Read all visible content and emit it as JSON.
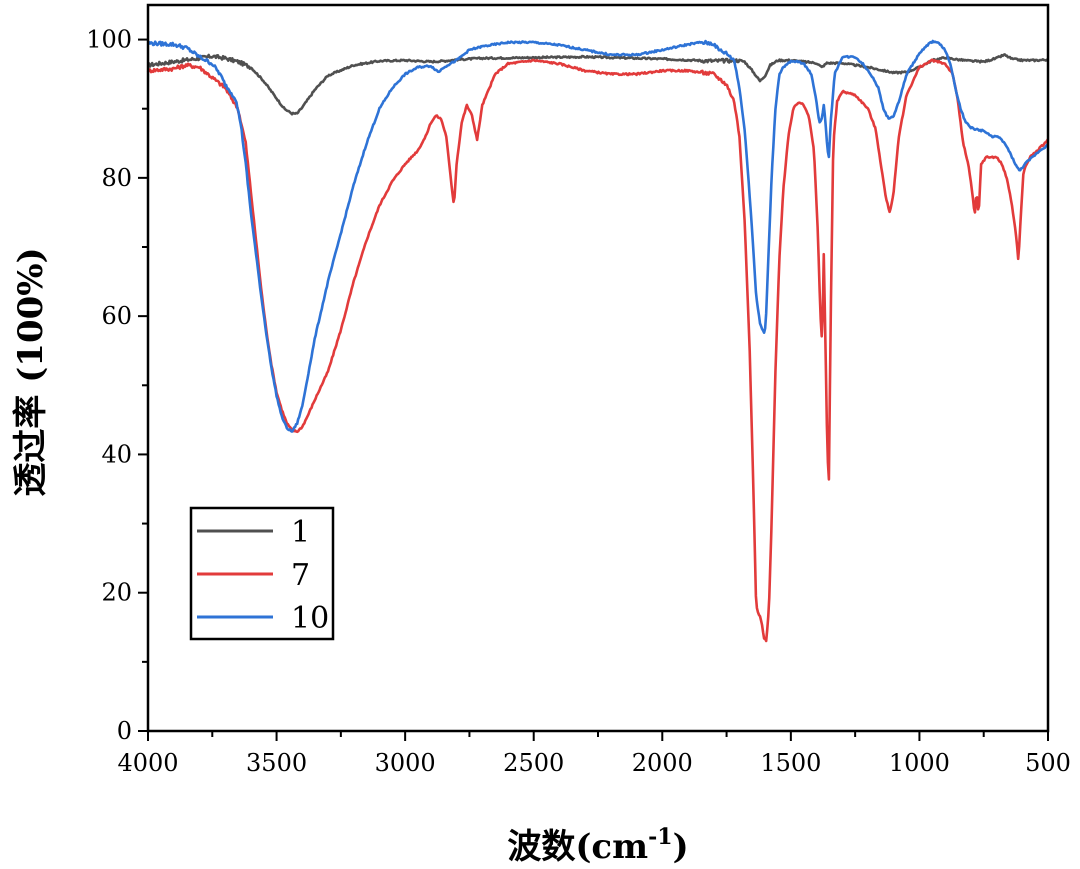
{
  "chart_data": {
    "type": "line",
    "title": "",
    "xlabel_main": "波数(cm",
    "xlabel_sup": "-1",
    "xlabel_close": ")",
    "ylabel": "透过率 (100%)",
    "xlim": [
      4000,
      500
    ],
    "ylim": [
      0,
      105
    ],
    "xticks": [
      4000,
      3500,
      3000,
      2500,
      2000,
      1500,
      1000,
      500
    ],
    "yticks": [
      0,
      20,
      40,
      60,
      80,
      100
    ],
    "legend_position": "lower-left",
    "series": [
      {
        "name": "1",
        "color": "#505050",
        "points": [
          [
            4000,
            96.3
          ],
          [
            3900,
            96.8
          ],
          [
            3800,
            97.3
          ],
          [
            3750,
            97.6
          ],
          [
            3700,
            97.3
          ],
          [
            3650,
            96.8
          ],
          [
            3600,
            96.0
          ],
          [
            3550,
            94.0
          ],
          [
            3500,
            91.5
          ],
          [
            3470,
            90.0
          ],
          [
            3440,
            89.3
          ],
          [
            3420,
            89.3
          ],
          [
            3400,
            90.2
          ],
          [
            3350,
            92.8
          ],
          [
            3300,
            94.8
          ],
          [
            3200,
            96.3
          ],
          [
            3100,
            96.9
          ],
          [
            3000,
            97.0
          ],
          [
            2900,
            96.8
          ],
          [
            2850,
            96.9
          ],
          [
            2800,
            97.1
          ],
          [
            2700,
            97.3
          ],
          [
            2500,
            97.4
          ],
          [
            2300,
            97.5
          ],
          [
            2000,
            97.2
          ],
          [
            1800,
            96.9
          ],
          [
            1700,
            97.0
          ],
          [
            1680,
            96.8
          ],
          [
            1650,
            95.5
          ],
          [
            1620,
            94.0
          ],
          [
            1600,
            94.8
          ],
          [
            1580,
            96.3
          ],
          [
            1550,
            97.0
          ],
          [
            1500,
            97.0
          ],
          [
            1450,
            96.8
          ],
          [
            1400,
            96.6
          ],
          [
            1380,
            96.0
          ],
          [
            1360,
            96.6
          ],
          [
            1300,
            96.6
          ],
          [
            1200,
            96.0
          ],
          [
            1100,
            95.2
          ],
          [
            1050,
            95.3
          ],
          [
            1000,
            96.0
          ],
          [
            950,
            97.0
          ],
          [
            900,
            97.4
          ],
          [
            850,
            97.1
          ],
          [
            800,
            96.9
          ],
          [
            750,
            96.8
          ],
          [
            700,
            97.3
          ],
          [
            670,
            97.8
          ],
          [
            640,
            97.2
          ],
          [
            600,
            97.0
          ],
          [
            550,
            97.0
          ],
          [
            500,
            97.1
          ]
        ]
      },
      {
        "name": "7",
        "color": "#e23b3b",
        "points": [
          [
            4000,
            95.5
          ],
          [
            3900,
            95.8
          ],
          [
            3850,
            96.3
          ],
          [
            3800,
            96.0
          ],
          [
            3750,
            94.5
          ],
          [
            3700,
            93.0
          ],
          [
            3650,
            90.0
          ],
          [
            3620,
            85.0
          ],
          [
            3600,
            78.0
          ],
          [
            3580,
            71.0
          ],
          [
            3560,
            64.0
          ],
          [
            3540,
            58.0
          ],
          [
            3520,
            53.0
          ],
          [
            3500,
            49.0
          ],
          [
            3480,
            46.5
          ],
          [
            3460,
            44.5
          ],
          [
            3440,
            43.5
          ],
          [
            3420,
            43.3
          ],
          [
            3400,
            44.0
          ],
          [
            3380,
            45.5
          ],
          [
            3350,
            48.0
          ],
          [
            3300,
            52.0
          ],
          [
            3250,
            58.0
          ],
          [
            3200,
            65.0
          ],
          [
            3150,
            71.0
          ],
          [
            3100,
            76.0
          ],
          [
            3050,
            79.5
          ],
          [
            3000,
            82.0
          ],
          [
            2950,
            84.0
          ],
          [
            2920,
            86.0
          ],
          [
            2900,
            88.0
          ],
          [
            2880,
            89.0
          ],
          [
            2860,
            88.5
          ],
          [
            2840,
            86.0
          ],
          [
            2820,
            79.0
          ],
          [
            2810,
            76.0
          ],
          [
            2800,
            82.0
          ],
          [
            2780,
            88.0
          ],
          [
            2760,
            90.5
          ],
          [
            2740,
            89.0
          ],
          [
            2720,
            85.5
          ],
          [
            2700,
            90.5
          ],
          [
            2650,
            95.0
          ],
          [
            2600,
            96.5
          ],
          [
            2500,
            97.0
          ],
          [
            2400,
            96.5
          ],
          [
            2300,
            95.5
          ],
          [
            2200,
            95.0
          ],
          [
            2100,
            95.0
          ],
          [
            2000,
            95.5
          ],
          [
            1900,
            95.5
          ],
          [
            1800,
            95.0
          ],
          [
            1750,
            93.5
          ],
          [
            1720,
            91.0
          ],
          [
            1700,
            86.0
          ],
          [
            1680,
            74.0
          ],
          [
            1660,
            55.0
          ],
          [
            1645,
            34.0
          ],
          [
            1635,
            18.0
          ],
          [
            1625,
            17.0
          ],
          [
            1615,
            16.0
          ],
          [
            1605,
            13.5
          ],
          [
            1595,
            13.0
          ],
          [
            1585,
            18.0
          ],
          [
            1575,
            30.0
          ],
          [
            1560,
            52.0
          ],
          [
            1545,
            68.0
          ],
          [
            1530,
            78.0
          ],
          [
            1510,
            86.0
          ],
          [
            1490,
            90.0
          ],
          [
            1470,
            91.0
          ],
          [
            1450,
            90.5
          ],
          [
            1430,
            89.0
          ],
          [
            1410,
            84.0
          ],
          [
            1395,
            72.0
          ],
          [
            1385,
            60.0
          ],
          [
            1378,
            56.0
          ],
          [
            1372,
            69.0
          ],
          [
            1365,
            55.0
          ],
          [
            1358,
            40.0
          ],
          [
            1352,
            36.5
          ],
          [
            1345,
            60.0
          ],
          [
            1335,
            85.0
          ],
          [
            1320,
            91.0
          ],
          [
            1300,
            92.5
          ],
          [
            1250,
            92.0
          ],
          [
            1200,
            90.0
          ],
          [
            1170,
            87.0
          ],
          [
            1150,
            82.0
          ],
          [
            1130,
            77.0
          ],
          [
            1115,
            75.0
          ],
          [
            1100,
            78.0
          ],
          [
            1080,
            86.0
          ],
          [
            1050,
            92.0
          ],
          [
            1000,
            96.0
          ],
          [
            950,
            97.0
          ],
          [
            900,
            96.5
          ],
          [
            870,
            95.0
          ],
          [
            850,
            91.0
          ],
          [
            830,
            85.0
          ],
          [
            810,
            82.0
          ],
          [
            795,
            78.0
          ],
          [
            785,
            74.5
          ],
          [
            778,
            78.0
          ],
          [
            770,
            74.5
          ],
          [
            760,
            82.0
          ],
          [
            740,
            83.0
          ],
          [
            700,
            83.0
          ],
          [
            680,
            82.0
          ],
          [
            660,
            80.0
          ],
          [
            640,
            76.0
          ],
          [
            625,
            72.0
          ],
          [
            615,
            68.0
          ],
          [
            605,
            75.0
          ],
          [
            595,
            81.0
          ],
          [
            570,
            83.0
          ],
          [
            540,
            84.0
          ],
          [
            500,
            85.5
          ]
        ]
      },
      {
        "name": "10",
        "color": "#2e73d6",
        "points": [
          [
            4000,
            99.5
          ],
          [
            3900,
            99.3
          ],
          [
            3850,
            98.8
          ],
          [
            3800,
            97.5
          ],
          [
            3750,
            96.5
          ],
          [
            3720,
            95.0
          ],
          [
            3700,
            93.5
          ],
          [
            3680,
            92.5
          ],
          [
            3660,
            91.5
          ],
          [
            3640,
            88.0
          ],
          [
            3620,
            82.0
          ],
          [
            3600,
            75.0
          ],
          [
            3580,
            69.0
          ],
          [
            3560,
            63.0
          ],
          [
            3540,
            57.5
          ],
          [
            3520,
            52.5
          ],
          [
            3500,
            48.5
          ],
          [
            3480,
            45.5
          ],
          [
            3460,
            43.8
          ],
          [
            3440,
            43.3
          ],
          [
            3420,
            44.5
          ],
          [
            3400,
            47.0
          ],
          [
            3380,
            51.0
          ],
          [
            3350,
            57.0
          ],
          [
            3300,
            65.0
          ],
          [
            3250,
            72.0
          ],
          [
            3200,
            79.0
          ],
          [
            3150,
            85.0
          ],
          [
            3100,
            90.0
          ],
          [
            3050,
            93.0
          ],
          [
            3000,
            95.0
          ],
          [
            2950,
            96.0
          ],
          [
            2900,
            96.2
          ],
          [
            2870,
            95.3
          ],
          [
            2850,
            96.0
          ],
          [
            2800,
            97.0
          ],
          [
            2750,
            98.5
          ],
          [
            2700,
            99.0
          ],
          [
            2600,
            99.6
          ],
          [
            2500,
            99.6
          ],
          [
            2400,
            99.2
          ],
          [
            2300,
            98.5
          ],
          [
            2200,
            97.8
          ],
          [
            2100,
            97.8
          ],
          [
            2000,
            98.5
          ],
          [
            1900,
            99.3
          ],
          [
            1850,
            99.6
          ],
          [
            1800,
            99.4
          ],
          [
            1780,
            98.5
          ],
          [
            1750,
            98.0
          ],
          [
            1720,
            97.0
          ],
          [
            1700,
            93.0
          ],
          [
            1680,
            87.0
          ],
          [
            1665,
            80.0
          ],
          [
            1650,
            72.0
          ],
          [
            1635,
            63.0
          ],
          [
            1620,
            59.0
          ],
          [
            1610,
            58.0
          ],
          [
            1605,
            57.5
          ],
          [
            1598,
            58.5
          ],
          [
            1590,
            66.0
          ],
          [
            1575,
            80.0
          ],
          [
            1560,
            90.0
          ],
          [
            1545,
            95.0
          ],
          [
            1530,
            96.0
          ],
          [
            1500,
            96.8
          ],
          [
            1470,
            96.8
          ],
          [
            1450,
            96.5
          ],
          [
            1420,
            95.0
          ],
          [
            1400,
            91.0
          ],
          [
            1390,
            88.0
          ],
          [
            1380,
            88.5
          ],
          [
            1372,
            90.5
          ],
          [
            1365,
            88.0
          ],
          [
            1358,
            84.0
          ],
          [
            1352,
            83.0
          ],
          [
            1345,
            88.0
          ],
          [
            1330,
            95.0
          ],
          [
            1300,
            97.5
          ],
          [
            1250,
            97.5
          ],
          [
            1220,
            96.5
          ],
          [
            1200,
            95.5
          ],
          [
            1180,
            94.5
          ],
          [
            1160,
            93.0
          ],
          [
            1140,
            90.0
          ],
          [
            1120,
            88.5
          ],
          [
            1100,
            89.0
          ],
          [
            1080,
            91.0
          ],
          [
            1050,
            95.0
          ],
          [
            1000,
            98.0
          ],
          [
            960,
            99.5
          ],
          [
            940,
            99.8
          ],
          [
            920,
            99.3
          ],
          [
            900,
            98.5
          ],
          [
            880,
            96.5
          ],
          [
            860,
            93.0
          ],
          [
            840,
            90.0
          ],
          [
            820,
            88.0
          ],
          [
            800,
            87.3
          ],
          [
            780,
            87.0
          ],
          [
            750,
            86.8
          ],
          [
            720,
            86.0
          ],
          [
            700,
            86.0
          ],
          [
            680,
            85.5
          ],
          [
            660,
            84.5
          ],
          [
            640,
            83.0
          ],
          [
            620,
            81.5
          ],
          [
            610,
            81.0
          ],
          [
            590,
            82.0
          ],
          [
            560,
            83.0
          ],
          [
            530,
            84.0
          ],
          [
            500,
            84.8
          ]
        ]
      }
    ]
  }
}
